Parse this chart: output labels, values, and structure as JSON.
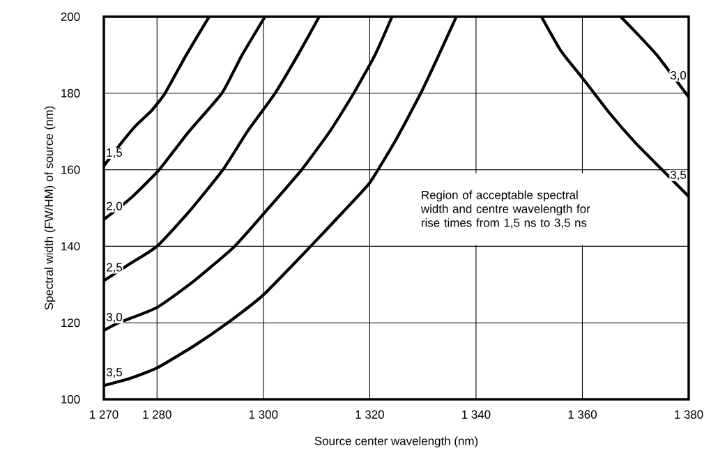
{
  "chart_data": {
    "type": "line",
    "xlabel": "Source center wavelength (nm)",
    "ylabel": "Spectral width (FW/HM) of source (nm)",
    "annotations": [
      "Region of acceptable spectral width and centre wavelength for rise times from 1,5 ns to 3,5 ns"
    ],
    "xlim": [
      1270,
      1380
    ],
    "ylim": [
      100,
      200
    ],
    "xticks": [
      {
        "value": 1270,
        "label": "1 270"
      },
      {
        "value": 1280,
        "label": "1 280"
      },
      {
        "value": 1300,
        "label": "1 300"
      },
      {
        "value": 1320,
        "label": "1 320"
      },
      {
        "value": 1340,
        "label": "1 340"
      },
      {
        "value": 1360,
        "label": "1 360"
      },
      {
        "value": 1380,
        "label": "1 380"
      }
    ],
    "yticks": [
      100,
      120,
      140,
      160,
      180,
      200
    ],
    "grid": true,
    "legend": false,
    "marker": "none",
    "line_style": "solid",
    "series": [
      {
        "name": "1,5",
        "color": "#000000",
        "x": [
          1270,
          1273,
          1276,
          1279,
          1281.5,
          1285.5,
          1289.8
        ],
        "values": [
          161,
          166.5,
          171.5,
          175.5,
          180,
          190,
          200
        ]
      },
      {
        "name": "2,0",
        "color": "#000000",
        "x": [
          1270,
          1275,
          1280.4,
          1286,
          1292.2,
          1296,
          1300.3
        ],
        "values": [
          147,
          152.5,
          160,
          170,
          180,
          190,
          200
        ]
      },
      {
        "name": "2,5",
        "color": "#000000",
        "x": [
          1270,
          1275,
          1280,
          1286,
          1292.4,
          1297,
          1302.2,
          1306.5,
          1310.5
        ],
        "values": [
          131,
          135.5,
          140,
          149,
          160,
          170,
          180,
          190,
          200
        ]
      },
      {
        "name": "3,0",
        "color": "#000000",
        "x": [
          1270,
          1272.8,
          1280,
          1287,
          1294.6,
          1301,
          1307.2,
          1312.5,
          1317,
          1321,
          1324.2
        ],
        "values": [
          118,
          120,
          124,
          131,
          140,
          150,
          160,
          170,
          180,
          190,
          200
        ]
      },
      {
        "name": "3,5",
        "color": "#000000",
        "x": [
          1270,
          1275,
          1280,
          1287,
          1293.3,
          1300,
          1308.9,
          1315,
          1320,
          1325,
          1329.6,
          1333,
          1336.3
        ],
        "values": [
          103.6,
          105.5,
          108.2,
          114,
          120,
          127.3,
          140,
          149,
          156.6,
          168,
          180,
          190,
          200
        ]
      },
      {
        "name": "3,0",
        "color": "#000000",
        "x": [
          1367.2,
          1370,
          1374,
          1380
        ],
        "values": [
          200,
          196,
          190,
          179
        ]
      },
      {
        "name": "3,5",
        "color": "#000000",
        "x": [
          1352.3,
          1356,
          1360,
          1365,
          1370,
          1375,
          1380
        ],
        "values": [
          200,
          191,
          184,
          175,
          167,
          160,
          153
        ]
      }
    ]
  }
}
